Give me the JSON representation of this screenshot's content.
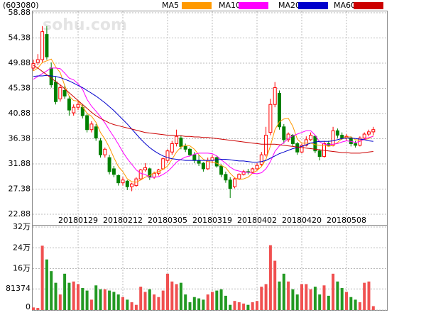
{
  "chart_data": [
    {
      "type": "candlestick",
      "title": "(603080)",
      "watermark": "sohu.com",
      "categories": [
        null,
        null,
        null,
        null,
        null,
        null,
        null,
        null,
        null,
        null,
        "20180129",
        null,
        null,
        null,
        null,
        null,
        null,
        null,
        null,
        null,
        "20180212",
        null,
        null,
        null,
        null,
        null,
        null,
        null,
        null,
        null,
        "20180305",
        null,
        null,
        null,
        null,
        null,
        null,
        null,
        null,
        null,
        "20180319",
        null,
        null,
        null,
        null,
        null,
        null,
        null,
        null,
        null,
        "20180402",
        null,
        null,
        null,
        null,
        null,
        null,
        null,
        null,
        null,
        "20180420",
        null,
        null,
        null,
        null,
        null,
        null,
        null,
        null,
        null,
        "20180508",
        null,
        null,
        null,
        null,
        null,
        null
      ],
      "open": [
        49.0,
        50.0,
        50.5,
        55.0,
        49.0,
        46.5,
        43.5,
        45.0,
        43.5,
        41.0,
        42.0,
        42.0,
        40.5,
        38.0,
        38.5,
        36.0,
        33.5,
        33.0,
        31.0,
        29.8,
        28.5,
        28.8,
        27.8,
        28.0,
        29.2,
        30.8,
        31.0,
        29.5,
        30.2,
        31.0,
        32.5,
        34.0,
        35.5,
        36.5,
        35.0,
        34.5,
        33.5,
        32.5,
        32.0,
        31.0,
        32.5,
        33.0,
        31.5,
        30.0,
        29.0,
        27.8,
        29.2,
        30.0,
        30.5,
        30.4,
        31.0,
        31.8,
        33.5,
        37.5,
        42.5,
        44.5,
        38.5,
        36.2,
        37.0,
        35.5,
        34.0,
        35.2,
        36.2,
        36.8,
        34.2,
        33.2,
        35.5,
        35.2,
        37.8,
        37.0,
        36.5,
        36.5,
        35.5,
        35.2,
        36.5,
        37.2,
        37.6
      ],
      "high": [
        50.5,
        51.5,
        56.5,
        56.5,
        50.0,
        47.5,
        46.0,
        46.0,
        44.0,
        42.5,
        43.0,
        42.5,
        41.0,
        39.5,
        39.0,
        36.5,
        34.8,
        33.5,
        31.5,
        30.0,
        29.5,
        29.0,
        28.5,
        29.5,
        31.0,
        32.0,
        31.2,
        30.5,
        31.0,
        33.0,
        34.5,
        36.0,
        38.0,
        37.0,
        35.5,
        34.8,
        34.0,
        33.5,
        32.2,
        33.0,
        33.5,
        33.2,
        31.8,
        30.5,
        29.5,
        29.5,
        30.2,
        30.8,
        31.0,
        31.2,
        32.0,
        34.0,
        38.5,
        43.5,
        46.5,
        45.0,
        39.0,
        37.5,
        37.2,
        35.8,
        35.5,
        36.8,
        37.5,
        37.0,
        34.5,
        36.0,
        36.0,
        38.5,
        38.2,
        37.5,
        37.2,
        36.8,
        36.0,
        36.8,
        37.5,
        38.0,
        38.5
      ],
      "low": [
        48.5,
        49.5,
        50.0,
        50.5,
        45.5,
        42.5,
        43.0,
        43.5,
        40.5,
        40.5,
        41.5,
        40.0,
        37.5,
        37.5,
        36.0,
        33.0,
        33.0,
        30.0,
        29.5,
        28.0,
        28.0,
        27.2,
        27.0,
        27.8,
        29.0,
        30.5,
        29.0,
        29.2,
        29.8,
        30.8,
        32.0,
        33.5,
        35.0,
        34.5,
        34.0,
        33.2,
        32.0,
        31.5,
        30.5,
        30.8,
        32.0,
        31.2,
        29.5,
        28.5,
        25.8,
        27.5,
        29.0,
        29.8,
        30.0,
        30.2,
        30.8,
        31.5,
        33.2,
        37.0,
        42.0,
        38.0,
        35.5,
        35.8,
        35.0,
        33.5,
        33.8,
        35.0,
        36.0,
        33.8,
        32.5,
        33.0,
        35.0,
        35.0,
        36.5,
        36.2,
        36.0,
        35.0,
        34.8,
        35.0,
        36.2,
        36.8,
        37.0
      ],
      "close": [
        49.8,
        50.5,
        55.5,
        51.0,
        46.0,
        43.0,
        45.5,
        44.0,
        41.5,
        42.0,
        42.5,
        40.5,
        38.0,
        39.0,
        36.5,
        33.5,
        34.5,
        30.5,
        30.0,
        28.5,
        29.0,
        27.8,
        28.3,
        29.2,
        30.8,
        31.2,
        29.5,
        30.2,
        30.8,
        32.8,
        34.2,
        35.5,
        36.8,
        35.0,
        34.5,
        33.5,
        32.5,
        32.0,
        31.0,
        32.5,
        33.0,
        31.5,
        30.0,
        29.0,
        27.5,
        29.2,
        30.0,
        30.5,
        30.4,
        31.0,
        31.6,
        33.5,
        37.0,
        42.5,
        45.5,
        38.5,
        36.2,
        37.2,
        35.5,
        34.0,
        35.2,
        36.2,
        37.0,
        34.2,
        33.2,
        35.5,
        35.2,
        37.8,
        37.0,
        36.5,
        36.8,
        35.5,
        35.2,
        36.5,
        37.2,
        37.6,
        38.0
      ],
      "up_color": "#ff0000",
      "down_color": "#008000",
      "series": [
        {
          "name": "MA5",
          "color": "#ff9900",
          "values": [
            48.5,
            49.0,
            50.0,
            50.3,
            50.6,
            49.2,
            48.2,
            45.9,
            44.0,
            43.2,
            43.1,
            42.1,
            40.9,
            40.4,
            39.3,
            37.5,
            36.3,
            34.8,
            33.0,
            31.4,
            30.5,
            29.2,
            28.7,
            28.6,
            29.0,
            29.5,
            29.8,
            30.3,
            30.5,
            30.9,
            31.5,
            32.7,
            34.0,
            34.9,
            35.2,
            35.1,
            34.5,
            33.5,
            32.7,
            32.3,
            32.2,
            32.0,
            31.6,
            31.2,
            30.2,
            29.4,
            29.1,
            29.2,
            29.5,
            30.2,
            30.7,
            31.4,
            32.7,
            35.1,
            38.0,
            39.4,
            39.9,
            40.0,
            38.6,
            36.3,
            35.6,
            35.6,
            35.6,
            35.3,
            35.2,
            35.2,
            35.0,
            35.2,
            35.7,
            36.4,
            36.7,
            36.7,
            36.2,
            36.1,
            36.2,
            36.4,
            36.9
          ]
        },
        {
          "name": "MA10",
          "color": "#ff00ff",
          "values": [
            47.0,
            47.5,
            48.0,
            48.5,
            49.0,
            49.0,
            48.9,
            48.1,
            47.2,
            46.9,
            46.2,
            45.2,
            43.4,
            42.2,
            41.3,
            40.3,
            39.2,
            37.9,
            36.7,
            35.4,
            34.0,
            32.8,
            31.8,
            30.8,
            30.2,
            30.0,
            29.5,
            29.5,
            29.6,
            30.0,
            30.5,
            31.3,
            32.2,
            32.7,
            33.1,
            33.3,
            33.6,
            33.8,
            33.8,
            33.8,
            33.7,
            33.3,
            32.6,
            32.0,
            31.3,
            30.8,
            30.6,
            30.4,
            30.4,
            30.2,
            30.1,
            30.3,
            31.0,
            32.3,
            34.1,
            35.1,
            35.7,
            36.4,
            36.9,
            37.2,
            37.5,
            37.8,
            37.8,
            37.0,
            35.8,
            35.4,
            35.3,
            35.4,
            35.5,
            35.8,
            36.0,
            35.9,
            35.7,
            35.9,
            36.3,
            36.6,
            36.8
          ]
        },
        {
          "name": "MA20",
          "color": "#0000cc",
          "values": [
            47.5,
            47.6,
            47.6,
            47.7,
            47.6,
            47.5,
            47.3,
            47.0,
            46.7,
            46.3,
            45.9,
            45.5,
            45.0,
            44.5,
            44.0,
            43.4,
            42.8,
            42.1,
            41.4,
            40.6,
            39.8,
            39.0,
            38.1,
            37.2,
            36.3,
            35.5,
            34.8,
            34.2,
            33.7,
            33.3,
            33.0,
            32.8,
            32.7,
            32.6,
            32.5,
            32.5,
            32.5,
            32.5,
            32.5,
            32.5,
            32.5,
            32.6,
            32.7,
            32.7,
            32.6,
            32.5,
            32.4,
            32.4,
            32.3,
            32.2,
            32.2,
            32.3,
            32.5,
            32.9,
            33.3,
            33.7,
            34.0,
            34.3,
            34.6,
            34.8,
            35.0,
            35.3,
            35.6,
            35.8,
            35.9,
            35.9,
            35.9,
            36.0,
            36.2,
            36.4,
            36.5,
            36.5,
            36.4,
            36.3,
            36.2,
            36.0,
            35.9
          ]
        },
        {
          "name": "MA60",
          "color": "#cc0000",
          "values": [
            49.5,
            49.0,
            48.4,
            47.8,
            47.2,
            46.6,
            46.0,
            45.3,
            44.6,
            43.9,
            43.2,
            42.5,
            41.8,
            41.1,
            40.5,
            40.0,
            39.6,
            39.2,
            38.9,
            38.7,
            38.5,
            38.3,
            38.1,
            37.9,
            37.7,
            37.5,
            37.4,
            37.3,
            37.2,
            37.1,
            37.0,
            37.0,
            36.9,
            36.9,
            36.8,
            36.8,
            36.7,
            36.7,
            36.6,
            36.6,
            36.5,
            36.4,
            36.3,
            36.2,
            36.1,
            36.0,
            35.9,
            35.8,
            35.7,
            35.6,
            35.5,
            35.4,
            35.4,
            35.4,
            35.4,
            35.3,
            35.2,
            35.1,
            35.0,
            34.9,
            34.8,
            34.7,
            34.6,
            34.5,
            34.4,
            34.3,
            34.2,
            34.1,
            34.0,
            33.9,
            33.9,
            33.8,
            33.8,
            33.8,
            33.9,
            34.0,
            34.1
          ]
        }
      ],
      "ylim": [
        22.88,
        58.88
      ],
      "yticks": [
        58.88,
        54.38,
        49.88,
        45.38,
        40.88,
        36.38,
        31.88,
        27.38,
        22.88
      ],
      "grid": true
    },
    {
      "type": "bar",
      "values": [
        10000,
        8000,
        248000,
        195000,
        150000,
        105000,
        60000,
        140000,
        105000,
        110000,
        100000,
        85000,
        75000,
        40000,
        95000,
        80000,
        80000,
        75000,
        70000,
        60000,
        50000,
        40000,
        30000,
        20000,
        90000,
        70000,
        80000,
        60000,
        50000,
        75000,
        140000,
        110000,
        100000,
        105000,
        60000,
        30000,
        50000,
        45000,
        40000,
        60000,
        70000,
        75000,
        80000,
        55000,
        20000,
        35000,
        30000,
        25000,
        20000,
        30000,
        35000,
        90000,
        100000,
        250000,
        190000,
        110000,
        140000,
        110000,
        80000,
        60000,
        100000,
        100000,
        80000,
        90000,
        60000,
        95000,
        55000,
        140000,
        110000,
        85000,
        70000,
        50000,
        40000,
        30000,
        105000,
        110000,
        15000
      ],
      "up_color": "#f05050",
      "down_color": "#229922",
      "ylim": [
        0,
        320000
      ],
      "yticks": [
        {
          "value": 320000,
          "label": "32万"
        },
        {
          "value": 240000,
          "label": "24万"
        },
        {
          "value": 160000,
          "label": "16万"
        },
        81374,
        0
      ],
      "grid": true
    }
  ]
}
